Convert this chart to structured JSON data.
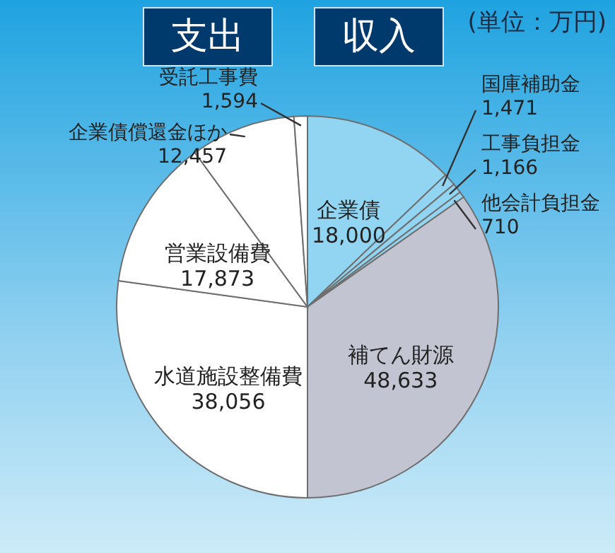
{
  "chart_data": {
    "type": "pie",
    "subtitle": "(単位：万円)",
    "annotations": [
      "支出",
      "収入"
    ],
    "categories": [
      "企業債",
      "国庫補助金",
      "工事負担金",
      "他会計負担金",
      "補てん財源",
      "水道施設整備費",
      "営業設備費",
      "企業債償還金ほか",
      "受託工事費"
    ],
    "values": [
      18000,
      1471,
      1166,
      710,
      48633,
      38056,
      17873,
      12457,
      1594
    ],
    "value_labels": [
      "18,000",
      "1,471",
      "1,166",
      "710",
      "48,633",
      "38,056",
      "17,873",
      "12,457",
      "1,594"
    ],
    "colors": [
      "#92d5f3",
      "#92d5f3",
      "#92d5f3",
      "#92d5f3",
      "#c2c5d1",
      "#ffffff",
      "#ffffff",
      "#ffffff",
      "#ffffff"
    ]
  }
}
